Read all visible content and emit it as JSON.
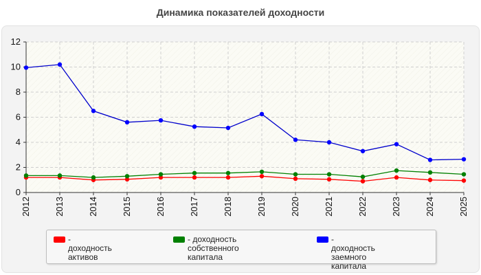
{
  "chart_data": {
    "type": "line",
    "title": "Динамика показателей доходности",
    "xlabel": "",
    "ylabel": "",
    "x": [
      "2012",
      "2013",
      "2014",
      "2015",
      "2016",
      "2017",
      "2018",
      "2019",
      "2020",
      "2021",
      "2022",
      "2023",
      "2024",
      "2025"
    ],
    "ylim": [
      0,
      12
    ],
    "yticks": [
      "0",
      "2",
      "4",
      "6",
      "8",
      "10",
      "12"
    ],
    "grid": true,
    "legend_position": "bottom",
    "series": [
      {
        "name": "- доходность активов",
        "name_lines": [
          "- доходность активов"
        ],
        "color": "#ff0000",
        "marker_color": "#ff0000",
        "values": [
          1.2,
          1.2,
          1.0,
          1.05,
          1.2,
          1.2,
          1.2,
          1.3,
          1.1,
          1.05,
          0.9,
          1.2,
          1.0,
          0.95
        ]
      },
      {
        "name": "- доходность собственного капитала",
        "name_lines": [
          "- доходность собственного",
          "капитала"
        ],
        "color": "#008000",
        "marker_color": "#008000",
        "values": [
          1.35,
          1.35,
          1.2,
          1.3,
          1.45,
          1.55,
          1.55,
          1.65,
          1.45,
          1.45,
          1.25,
          1.75,
          1.6,
          1.45
        ]
      },
      {
        "name": "- доходность заемного капитала",
        "name_lines": [
          "- доходность заемного",
          "капитала"
        ],
        "color": "#0000cc",
        "marker_color": "#0000ff",
        "values": [
          9.95,
          10.2,
          6.5,
          5.6,
          5.75,
          5.25,
          5.15,
          6.25,
          4.2,
          4.0,
          3.3,
          3.85,
          2.6,
          2.65
        ]
      }
    ]
  }
}
